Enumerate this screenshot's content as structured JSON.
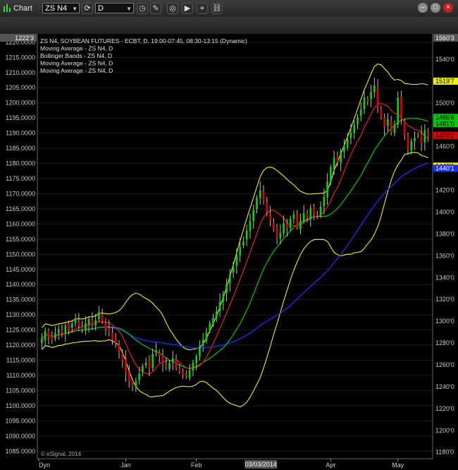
{
  "window": {
    "title": "Chart",
    "symbol_field": "ZS N4",
    "interval_field": "D"
  },
  "colors": {
    "background": "#000000",
    "up_candle": "#00d800",
    "down_candle": "#e00000",
    "ma_fast": "#ff2020",
    "ma_mid": "#00c800",
    "ma_slow": "#1a2fff",
    "bollinger": "#f0f000",
    "axis_text": "#c8c8c8"
  },
  "legend": [
    "ZS N4, SOYBEAN FUTURES - ECBT, D, 19:00-07:45, 08:30-13:15 (Dynamic)",
    "Moving Average - ZS N4, D",
    "Bollinger Bands - ZS N4, D",
    "Moving Average - ZS N4, D",
    "Moving Average - ZS N4, D"
  ],
  "watermark": "© eSignal, 2014",
  "chart_data": {
    "type": "candlestick",
    "title": "ZS N4, SOYBEAN FUTURES - ECBT, D",
    "left_axis": {
      "ylim": [
        1082.5,
        1222.3
      ],
      "ticks": [
        1085,
        1090,
        1095,
        1100,
        1105,
        1110,
        1115,
        1120,
        1125,
        1130,
        1135,
        1140,
        1145,
        1150,
        1155,
        1160,
        1165,
        1170,
        1175,
        1180,
        1185,
        1190,
        1195,
        1200,
        1205,
        1210,
        1215,
        1220
      ],
      "tick_labels": [
        "1085.0000",
        "1090.0000",
        "1095.0000",
        "1100.0000",
        "1105.0000",
        "1110.0000",
        "1115.0000",
        "1120.0000",
        "1125.0000",
        "1130.0000",
        "1135.0000",
        "1140.0000",
        "1145.0000",
        "1150.0000",
        "1155.0000",
        "1160.0000",
        "1165.0000",
        "1170.0000",
        "1175.0000",
        "1180.0000",
        "1185.0000",
        "1190.0000",
        "1195.0000",
        "1200.0000",
        "1205.0000",
        "1210.0000",
        "1215.0000",
        "1220.0000"
      ],
      "top_label": "1222'3"
    },
    "right_axis": {
      "ylim": [
        1174,
        1562
      ],
      "ticks": [
        1180,
        1200,
        1220,
        1240,
        1260,
        1280,
        1300,
        1320,
        1340,
        1360,
        1380,
        1400,
        1420,
        1440,
        1460,
        1480,
        1500,
        1520,
        1540
      ],
      "tick_labels": [
        "1180'0",
        "1200'0",
        "1220'0",
        "1240'0",
        "1260'0",
        "1280'0",
        "1300'0",
        "1320'0",
        "1340'0",
        "1360'0",
        "1380'0",
        "1400'0",
        "1420'0",
        "1440'0",
        "1460'0",
        "1480'0",
        "1500'0",
        "1520'0",
        "1540'0"
      ],
      "top_label": "1560'3"
    },
    "price_markers": [
      {
        "label": "1519'7",
        "value": 1519.9,
        "bg": "#f0f000",
        "fg": "#000000"
      },
      {
        "label": "1486'6",
        "value": 1486.8,
        "bg": "#00c800",
        "fg": "#000000"
      },
      {
        "label": "1481'0",
        "value": 1481.0,
        "bg": "#00c800",
        "fg": "#000000"
      },
      {
        "label": "1470'2",
        "value": 1470.3,
        "bg": "#e00000",
        "fg": "#000000"
      },
      {
        "label": "1442'1",
        "value": 1442.1,
        "bg": "#f0f000",
        "fg": "#000000"
      },
      {
        "label": "1440'1",
        "value": 1440.1,
        "bg": "#1a2fff",
        "fg": "#ffffff"
      }
    ],
    "x_labels": [
      {
        "text": "Dyn",
        "index": 0
      },
      {
        "text": "Jan",
        "index": 25
      },
      {
        "text": "Feb",
        "index": 46
      },
      {
        "text": "03/03/2014",
        "index": 65
      },
      {
        "text": "Apr",
        "index": 86
      },
      {
        "text": "May",
        "index": 106
      }
    ],
    "candles_close": [
      1284,
      1291,
      1286,
      1283,
      1289,
      1293,
      1290,
      1296,
      1292,
      1298,
      1301,
      1296,
      1293,
      1298,
      1302,
      1297,
      1301,
      1308,
      1300,
      1293,
      1290,
      1283,
      1280,
      1272,
      1264,
      1252,
      1245,
      1240,
      1245,
      1252,
      1259,
      1262,
      1257,
      1270,
      1273,
      1268,
      1261,
      1258,
      1262,
      1266,
      1257,
      1254,
      1251,
      1250,
      1255,
      1262,
      1268,
      1276,
      1283,
      1290,
      1298,
      1303,
      1309,
      1318,
      1325,
      1334,
      1343,
      1350,
      1360,
      1368,
      1373,
      1383,
      1392,
      1402,
      1413,
      1420,
      1410,
      1400,
      1392,
      1385,
      1377,
      1381,
      1390,
      1385,
      1394,
      1398,
      1386,
      1392,
      1399,
      1395,
      1404,
      1398,
      1397,
      1405,
      1414,
      1428,
      1441,
      1450,
      1446,
      1455,
      1460,
      1467,
      1473,
      1480,
      1487,
      1494,
      1505,
      1502,
      1510,
      1516,
      1495,
      1487,
      1478,
      1485,
      1473,
      1480,
      1505,
      1485,
      1471,
      1458,
      1465,
      1468,
      1470,
      1463,
      1475,
      1470
    ]
  }
}
